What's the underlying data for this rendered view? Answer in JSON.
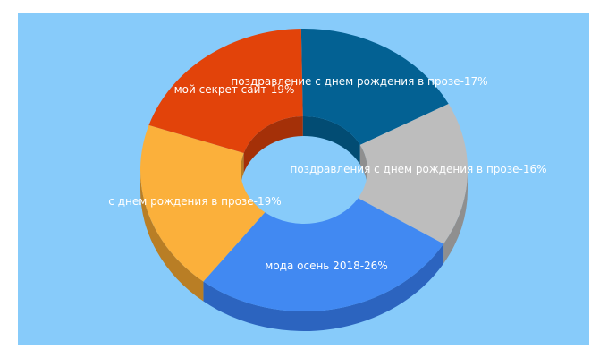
{
  "chart_data": {
    "type": "pie",
    "variant": "3d-donut",
    "title": "",
    "legend": "none",
    "slices": [
      {
        "label": "поздравление с днем рождения в прозе",
        "value": 17,
        "display": "поздравление с днем рождения в прозе-17%",
        "color": "#036193",
        "side_color": "#024c73"
      },
      {
        "label": "поздравления с днем рождения в прозе",
        "value": 16,
        "display": "поздравления с днем рождения в прозе-16%",
        "color": "#bdbdbd",
        "side_color": "#8f8f8f"
      },
      {
        "label": "мода осень 2018",
        "value": 26,
        "display": "мода осень 2018-26%",
        "color": "#4189f2",
        "side_color": "#2c64bf"
      },
      {
        "label": "с днем рождения в прозе",
        "value": 19,
        "display": "с днем рождения в прозе-19%",
        "color": "#fbb03b",
        "side_color": "#b97e25"
      },
      {
        "label": "мой секрет сайт",
        "value": 19,
        "display": "мой секрет сайт-19%",
        "color": "#e2430a",
        "side_color": "#a43008"
      }
    ]
  }
}
